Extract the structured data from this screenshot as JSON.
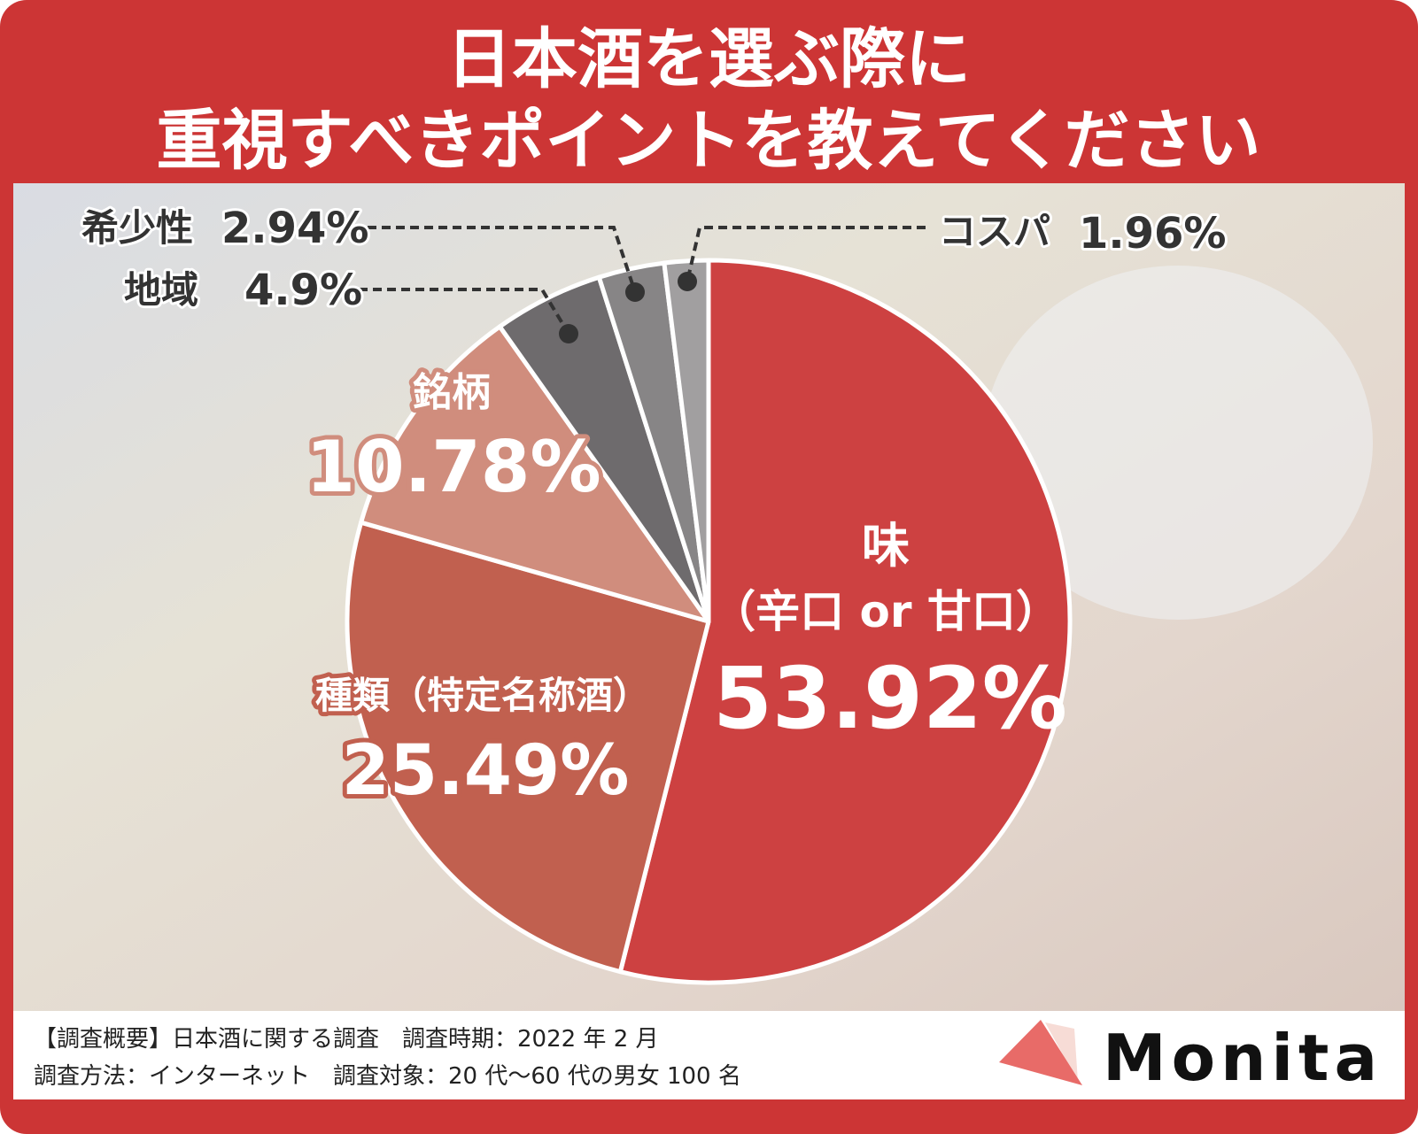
{
  "title_lines": [
    "日本酒を選ぶ際に",
    "重視すべきポイントを教えてください"
  ],
  "chart_data": {
    "type": "pie",
    "start": "12 o'clock",
    "direction": "clockwise",
    "slices": [
      {
        "label": "味（辛口 or 甘口）",
        "label_line1": "味",
        "label_line2": "（辛口 or 甘口）",
        "value": 53.92,
        "value_label": "53.92%",
        "color": "#cd4141"
      },
      {
        "label": "種類（特定名称酒）",
        "value": 25.49,
        "value_label": "25.49%",
        "color": "#c1604f"
      },
      {
        "label": "銘柄",
        "value": 10.78,
        "value_label": "10.78%",
        "color": "#d08d7d"
      },
      {
        "label": "地域",
        "value": 4.9,
        "value_label": "4.9%",
        "color": "#6e6b6d"
      },
      {
        "label": "希少性",
        "value": 2.94,
        "value_label": "2.94%",
        "color": "#878586"
      },
      {
        "label": "コスパ",
        "value": 1.96,
        "value_label": "1.96%",
        "color": "#a19fa0"
      }
    ]
  },
  "footer": {
    "line1": "【調査概要】日本酒に関する調査　調査時期：2022 年 2 月",
    "line2": "調査方法：インターネット　調査対象：20 代〜60 代の男女 100 名"
  },
  "logo": {
    "text": "Monita",
    "accent": "#e86b68"
  },
  "colors": {
    "frame": "#cc3535"
  }
}
